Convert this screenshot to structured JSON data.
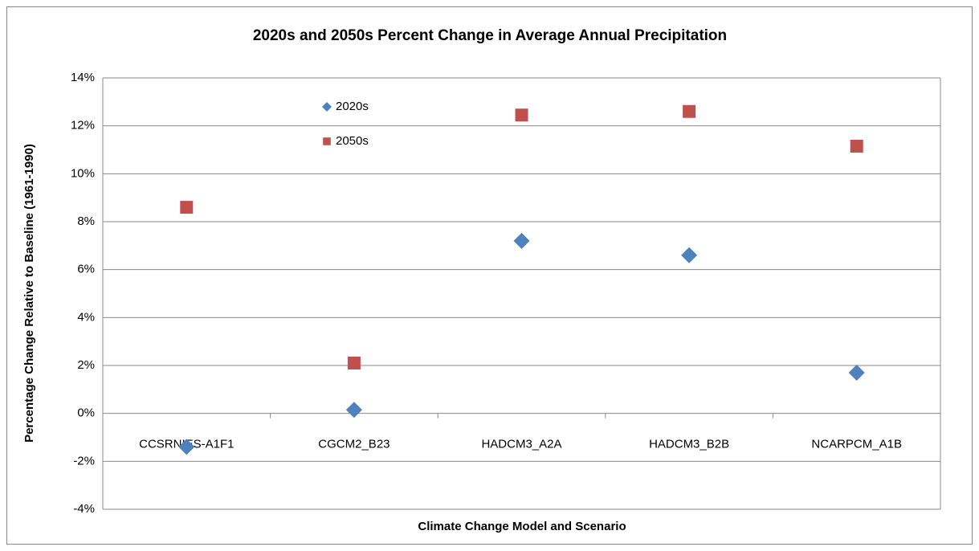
{
  "chart_data": {
    "type": "scatter",
    "title": "2020s and 2050s Percent Change in Average Annual Precipitation",
    "x_label": "Climate Change Model and Scenario",
    "y_label": "Percentage Change Relative to Baseline (1961-1990)",
    "categories": [
      "CCSRNIES-A1F1",
      "CGCM2_B23",
      "HADCM3_A2A",
      "HADCM3_B2B",
      "NCARPCM_A1B"
    ],
    "series": [
      {
        "name": "2020s",
        "color": "#4f81bd",
        "marker": "diamond",
        "values": [
          -1.4,
          0.15,
          7.2,
          6.6,
          1.7
        ]
      },
      {
        "name": "2050s",
        "color": "#c0504d",
        "marker": "square",
        "values": [
          8.6,
          2.1,
          12.45,
          12.6,
          11.15
        ]
      }
    ],
    "ylim": [
      -4,
      14
    ],
    "yticks": [
      {
        "value": -4,
        "label": "-4%"
      },
      {
        "value": -2,
        "label": "-2%"
      },
      {
        "value": 0,
        "label": "0%"
      },
      {
        "value": 2,
        "label": "2%"
      },
      {
        "value": 4,
        "label": "4%"
      },
      {
        "value": 6,
        "label": "6%"
      },
      {
        "value": 8,
        "label": "8%"
      },
      {
        "value": 10,
        "label": "10%"
      },
      {
        "value": 12,
        "label": "12%"
      },
      {
        "value": 14,
        "label": "14%"
      }
    ],
    "grid": true
  }
}
